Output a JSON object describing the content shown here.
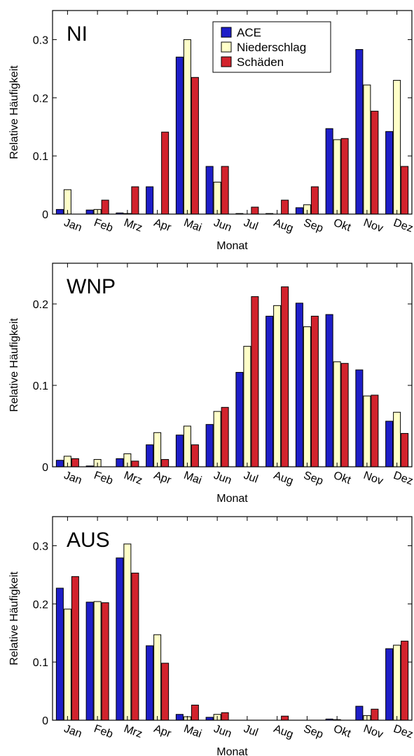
{
  "chart_data": [
    {
      "type": "bar",
      "title": "NI",
      "xlabel": "Monat",
      "ylabel": "Relative Häufigkeit",
      "ylim": [
        0,
        0.35
      ],
      "yticks": [
        0,
        0.1,
        0.2,
        0.3
      ],
      "ytick_labels": [
        "0",
        "0.1",
        "0.2",
        "0.3"
      ],
      "categories": [
        "Jan",
        "Feb",
        "Mrz",
        "Apr",
        "Mai",
        "Jun",
        "Jul",
        "Aug",
        "Sep",
        "Okt",
        "Nov",
        "Dez"
      ],
      "legend": {
        "position": "top-center",
        "show": true
      },
      "series": [
        {
          "name": "ACE",
          "color": "#1e1ec8",
          "values": [
            0.008,
            0.007,
            0.002,
            0.047,
            0.27,
            0.082,
            0.001,
            0.001,
            0.011,
            0.147,
            0.283,
            0.142
          ]
        },
        {
          "name": "Niederschlag",
          "color": "#ffffc8",
          "values": [
            0.042,
            0.008,
            0.001,
            0.0,
            0.3,
            0.055,
            0.0,
            0.0,
            0.016,
            0.128,
            0.222,
            0.23
          ]
        },
        {
          "name": "Schäden",
          "color": "#d2232d",
          "values": [
            0.0,
            0.024,
            0.047,
            0.141,
            0.235,
            0.082,
            0.012,
            0.024,
            0.047,
            0.13,
            0.177,
            0.082
          ]
        }
      ]
    },
    {
      "type": "bar",
      "title": "WNP",
      "xlabel": "Monat",
      "ylabel": "Relative Häufigkeit",
      "ylim": [
        0,
        0.25
      ],
      "yticks": [
        0,
        0.1,
        0.2
      ],
      "ytick_labels": [
        "0",
        "0.1",
        "0.2"
      ],
      "categories": [
        "Jan",
        "Feb",
        "Mrz",
        "Apr",
        "Mai",
        "Jun",
        "Jul",
        "Aug",
        "Sep",
        "Okt",
        "Nov",
        "Dez"
      ],
      "legend": {
        "show": false
      },
      "series": [
        {
          "name": "ACE",
          "color": "#1e1ec8",
          "values": [
            0.008,
            0.001,
            0.01,
            0.027,
            0.039,
            0.052,
            0.116,
            0.185,
            0.201,
            0.187,
            0.119,
            0.056
          ]
        },
        {
          "name": "Niederschlag",
          "color": "#ffffc8",
          "values": [
            0.013,
            0.009,
            0.016,
            0.042,
            0.05,
            0.068,
            0.148,
            0.198,
            0.172,
            0.129,
            0.087,
            0.067
          ]
        },
        {
          "name": "Schäden",
          "color": "#d2232d",
          "values": [
            0.01,
            0.0,
            0.007,
            0.009,
            0.027,
            0.073,
            0.209,
            0.221,
            0.185,
            0.127,
            0.088,
            0.041
          ]
        }
      ]
    },
    {
      "type": "bar",
      "title": "AUS",
      "xlabel": "Monat",
      "ylabel": "Relative Häufigkeit",
      "ylim": [
        0,
        0.35
      ],
      "yticks": [
        0,
        0.1,
        0.2,
        0.3
      ],
      "ytick_labels": [
        "0",
        "0.1",
        "0.2",
        "0.3"
      ],
      "categories": [
        "Jan",
        "Feb",
        "Mrz",
        "Apr",
        "Mai",
        "Jun",
        "Jul",
        "Aug",
        "Sep",
        "Okt",
        "Nov",
        "Dez"
      ],
      "legend": {
        "show": false
      },
      "series": [
        {
          "name": "ACE",
          "color": "#1e1ec8",
          "values": [
            0.227,
            0.203,
            0.279,
            0.128,
            0.01,
            0.005,
            0.0,
            0.0,
            0.0,
            0.002,
            0.024,
            0.123
          ]
        },
        {
          "name": "Niederschlag",
          "color": "#ffffc8",
          "values": [
            0.191,
            0.204,
            0.303,
            0.147,
            0.006,
            0.01,
            0.0,
            0.0,
            0.0,
            0.001,
            0.008,
            0.129
          ]
        },
        {
          "name": "Schäden",
          "color": "#d2232d",
          "values": [
            0.247,
            0.202,
            0.253,
            0.098,
            0.026,
            0.013,
            0.0,
            0.007,
            0.0,
            0.0,
            0.019,
            0.136
          ]
        }
      ]
    }
  ]
}
